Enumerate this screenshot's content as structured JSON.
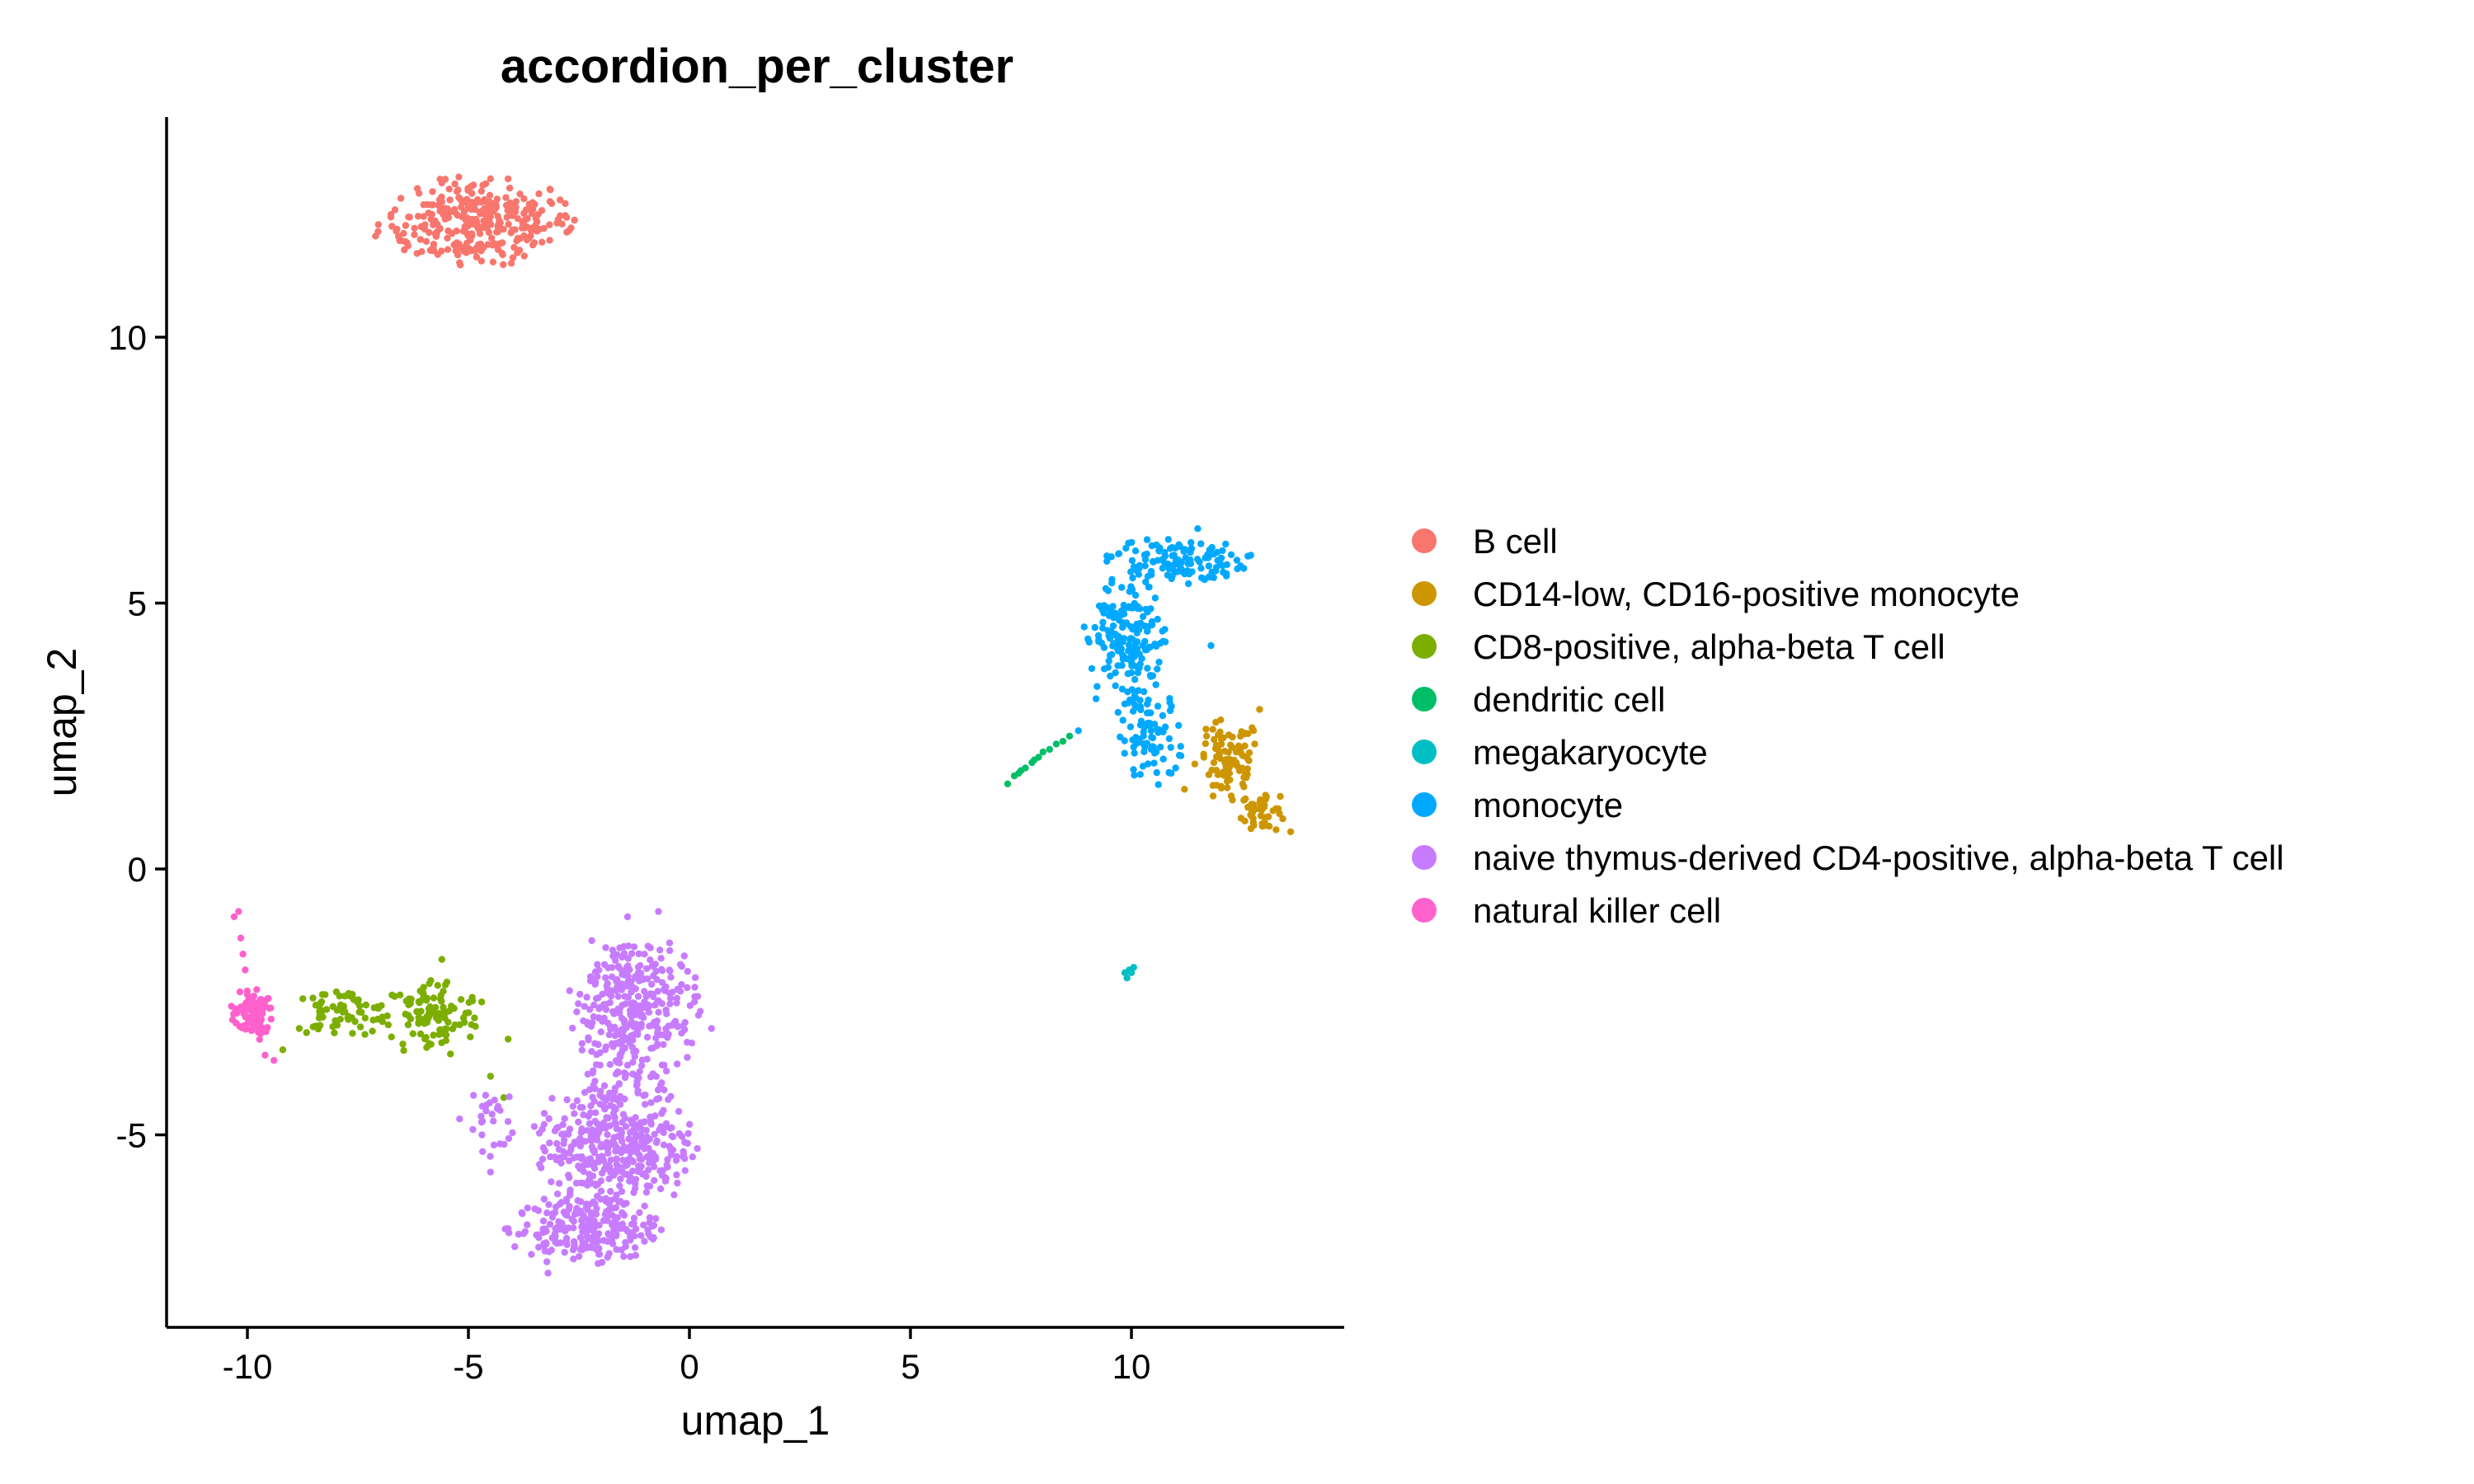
{
  "chart_data": {
    "type": "scatter",
    "title": "accordion_per_cluster",
    "xlabel": "umap_1",
    "ylabel": "umap_2",
    "xlim": [
      -12,
      15
    ],
    "ylim": [
      -8.6,
      14
    ],
    "x_ticks": [
      -10,
      -5,
      0,
      5,
      10
    ],
    "x_tick_labels": [
      "-10",
      "-5",
      "0",
      "5",
      "10"
    ],
    "y_ticks": [
      -5,
      0,
      5,
      10
    ],
    "y_tick_labels": [
      "-5",
      "0",
      "5",
      "10"
    ],
    "grid": false,
    "legend_position": "right",
    "series": [
      {
        "name": "B cell",
        "color": "#F8766D",
        "clusters": [
          {
            "cx": -4.8,
            "cy": 12.15,
            "rx": 2.25,
            "ry": 0.85,
            "n": 300
          }
        ],
        "points": [
          [
            -7.1,
            11.9
          ],
          [
            -2.6,
            12.2
          ],
          [
            -5.6,
            12.9
          ],
          [
            -5.2,
            11.4
          ],
          [
            -3.5,
            12.5
          ]
        ]
      },
      {
        "name": "CD14-low, CD16-positive monocyte",
        "color": "#CD9600",
        "clusters": [
          {
            "cx": 12.2,
            "cy": 2.0,
            "rx": 0.75,
            "ry": 0.85,
            "n": 90
          },
          {
            "cx": 13.0,
            "cy": 1.1,
            "rx": 0.55,
            "ry": 0.4,
            "n": 45
          }
        ],
        "points": [
          [
            12.9,
            3.0
          ],
          [
            13.6,
            0.7
          ],
          [
            11.2,
            1.5
          ],
          [
            11.7,
            2.5
          ]
        ]
      },
      {
        "name": "CD8-positive, alpha-beta T cell",
        "color": "#7CAE00",
        "clusters": [
          {
            "cx": -7.9,
            "cy": -2.7,
            "rx": 1.3,
            "ry": 0.45,
            "n": 70
          },
          {
            "cx": -5.8,
            "cy": -2.8,
            "rx": 1.1,
            "ry": 0.75,
            "n": 110
          }
        ],
        "points": [
          [
            -4.5,
            -3.9
          ],
          [
            -4.2,
            -4.3
          ],
          [
            -4.7,
            -2.5
          ],
          [
            -9.2,
            -3.4
          ],
          [
            -5.6,
            -1.7
          ],
          [
            -4.1,
            -3.2
          ]
        ]
      },
      {
        "name": "dendritic cell",
        "color": "#00BE67",
        "clusters": [],
        "points": [
          [
            7.2,
            1.6
          ],
          [
            7.35,
            1.75
          ],
          [
            7.5,
            1.85
          ],
          [
            7.6,
            1.9
          ],
          [
            7.75,
            2.0
          ],
          [
            7.9,
            2.1
          ],
          [
            8.0,
            2.2
          ],
          [
            8.15,
            2.25
          ],
          [
            8.3,
            2.35
          ],
          [
            8.45,
            2.4
          ],
          [
            8.6,
            2.5
          ],
          [
            7.45,
            1.8
          ],
          [
            7.8,
            2.05
          ]
        ]
      },
      {
        "name": "megakaryocyte",
        "color": "#00BFC4",
        "clusters": [],
        "points": [
          [
            9.85,
            -1.95
          ],
          [
            9.95,
            -1.9
          ],
          [
            10.05,
            -1.85
          ],
          [
            9.9,
            -2.05
          ],
          [
            10.0,
            -1.95
          ]
        ]
      },
      {
        "name": "monocyte",
        "color": "#00A9FF",
        "clusters": [
          {
            "cx": 11.0,
            "cy": 5.8,
            "rx": 1.6,
            "ry": 0.45,
            "n": 120
          },
          {
            "cx": 9.9,
            "cy": 4.3,
            "rx": 1.0,
            "ry": 1.2,
            "n": 170
          },
          {
            "cx": 10.4,
            "cy": 2.5,
            "rx": 0.8,
            "ry": 0.9,
            "n": 80
          }
        ],
        "points": [
          [
            12.7,
            5.9
          ],
          [
            11.5,
            6.4
          ],
          [
            9.2,
            3.2
          ],
          [
            8.8,
            2.6
          ],
          [
            11.8,
            4.2
          ],
          [
            10.9,
            1.8
          ],
          [
            11.0,
            1.9
          ]
        ]
      },
      {
        "name": "naive thymus-derived CD4-positive, alpha-beta T cell",
        "color": "#C77CFF",
        "clusters": [
          {
            "cx": -1.3,
            "cy": -2.7,
            "rx": 1.5,
            "ry": 1.6,
            "n": 330
          },
          {
            "cx": -1.7,
            "cy": -5.2,
            "rx": 1.8,
            "ry": 1.35,
            "n": 400
          },
          {
            "cx": -2.4,
            "cy": -6.8,
            "rx": 1.7,
            "ry": 0.65,
            "n": 210
          },
          {
            "cx": -4.6,
            "cy": -4.8,
            "rx": 0.6,
            "ry": 0.9,
            "n": 25
          }
        ],
        "points": [
          [
            -0.7,
            -0.8
          ],
          [
            -1.4,
            -0.9
          ],
          [
            0.5,
            -3.0
          ],
          [
            -3.2,
            -7.6
          ],
          [
            -4.9,
            -4.9
          ],
          [
            -5.2,
            -4.7
          ],
          [
            -4.5,
            -5.7
          ]
        ]
      },
      {
        "name": "natural killer cell",
        "color": "#FF61CC",
        "clusters": [
          {
            "cx": -9.9,
            "cy": -2.75,
            "rx": 0.5,
            "ry": 0.5,
            "n": 95
          }
        ],
        "points": [
          [
            -10.2,
            -0.8
          ],
          [
            -10.3,
            -0.9
          ],
          [
            -10.15,
            -1.3
          ],
          [
            -10.1,
            -1.6
          ],
          [
            -10.05,
            -1.9
          ],
          [
            -9.6,
            -3.5
          ],
          [
            -9.4,
            -3.6
          ]
        ]
      }
    ]
  }
}
